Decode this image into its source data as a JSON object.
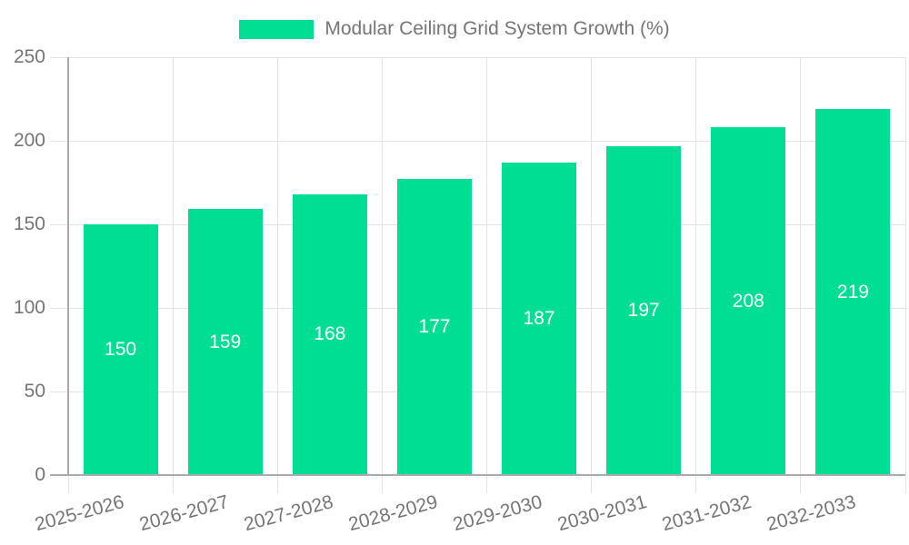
{
  "chart_data": {
    "type": "bar",
    "title": "",
    "legend_label": "Modular Ceiling Grid System Growth (%)",
    "legend_position": "top-center",
    "categories": [
      "2025-2026",
      "2026-2027",
      "2027-2028",
      "2028-2029",
      "2029-2030",
      "2030-2031",
      "2031-2032",
      "2032-2033"
    ],
    "series": [
      {
        "name": "Modular Ceiling Grid System Growth (%)",
        "values": [
          150,
          159,
          168,
          177,
          187,
          197,
          208,
          219
        ]
      }
    ],
    "xlabel": "",
    "ylabel": "",
    "ylim": [
      0,
      250
    ],
    "yticks": [
      0,
      50,
      100,
      150,
      200,
      250
    ],
    "grid": true,
    "x_tick_rotation_deg": -15,
    "bar_value_labels": {
      "position": "inside-center",
      "color": "#ffffff"
    },
    "colors": {
      "bar": "#00de94",
      "axis_text": "#757575",
      "gridline": "#e3e3e3",
      "axis_line": "#ababab",
      "value_label": "#ffffff",
      "background": "#ffffff"
    }
  }
}
